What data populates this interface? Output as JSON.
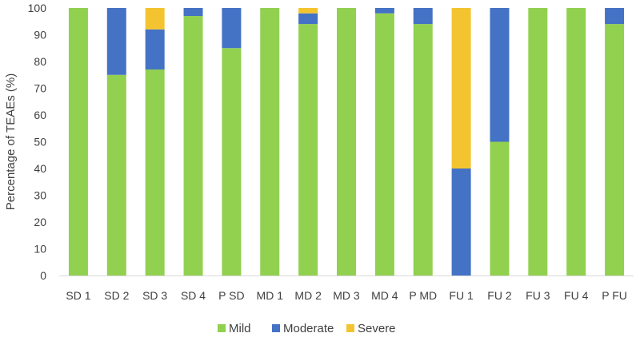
{
  "chart_data": {
    "type": "bar",
    "stacked": true,
    "categories": [
      "SD 1",
      "SD 2",
      "SD 3",
      "SD 4",
      "P SD",
      "MD 1",
      "MD 2",
      "MD 3",
      "MD 4",
      "P MD",
      "FU 1",
      "FU 2",
      "FU 3",
      "FU 4",
      "P FU"
    ],
    "series": [
      {
        "name": "Mild",
        "color": "#92D050",
        "values": [
          100,
          75,
          77,
          97,
          85,
          100,
          94,
          100,
          98,
          94,
          0,
          50,
          100,
          100,
          94
        ]
      },
      {
        "name": "Moderate",
        "color": "#4472C4",
        "values": [
          0,
          25,
          15,
          3,
          15,
          0,
          4,
          0,
          2,
          6,
          40,
          50,
          0,
          0,
          6
        ]
      },
      {
        "name": "Severe",
        "color": "#F4C430",
        "values": [
          0,
          0,
          8,
          0,
          0,
          0,
          2,
          0,
          0,
          0,
          60,
          0,
          0,
          0,
          0
        ]
      }
    ],
    "title": "",
    "xlabel": "",
    "ylabel": "Percentage of TEAEs (%)",
    "ylim": [
      0,
      100
    ],
    "yticks": [
      0,
      10,
      20,
      30,
      40,
      50,
      60,
      70,
      80,
      90,
      100
    ],
    "grid": false,
    "legend": "bottom"
  }
}
